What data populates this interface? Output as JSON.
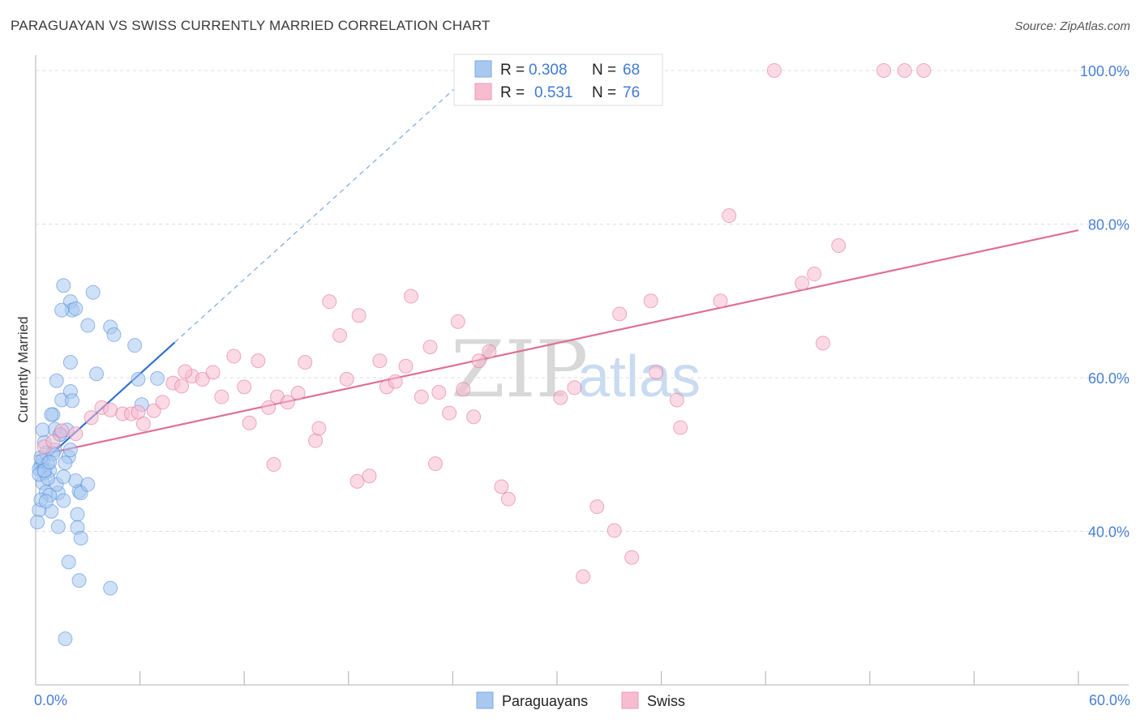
{
  "header": {
    "title": "PARAGUAYAN VS SWISS CURRENTLY MARRIED CORRELATION CHART",
    "source": "Source: ZipAtlas.com"
  },
  "watermark": {
    "zip": "ZIP",
    "atlas": "atlas"
  },
  "legend_top": {
    "rows": [
      {
        "r_label": "R =",
        "r_value": "0.308",
        "n_label": "N =",
        "n_value": "68",
        "color": "#a8c8f0"
      },
      {
        "r_label": "R =",
        "r_value": "0.531",
        "n_label": "N =",
        "n_value": "76",
        "color": "#f8bcd0"
      }
    ]
  },
  "legend_bottom": {
    "items": [
      {
        "label": "Paraguayans",
        "color": "#a8c8f0"
      },
      {
        "label": "Swiss",
        "color": "#f8bcd0"
      }
    ]
  },
  "chart_data": {
    "type": "scatter",
    "title": "PARAGUAYAN VS SWISS CURRENTLY MARRIED CORRELATION CHART",
    "xlabel": "",
    "ylabel": "Currently Married",
    "xlim": [
      0,
      60
    ],
    "ylim": [
      20,
      102
    ],
    "x_tick_labels": [
      {
        "value": 0,
        "label": "0.0%"
      },
      {
        "value": 60,
        "label": "60.0%"
      }
    ],
    "y_tick_labels": [
      {
        "value": 40,
        "label": "40.0%"
      },
      {
        "value": 60,
        "label": "60.0%"
      },
      {
        "value": 80,
        "label": "80.0%"
      },
      {
        "value": 100,
        "label": "100.0%"
      }
    ],
    "y_gridlines": [
      40,
      60,
      80,
      100
    ],
    "x_minor_ticks": [
      6,
      12,
      18,
      24,
      30,
      36,
      42,
      48,
      54
    ],
    "series": [
      {
        "name": "Paraguayans",
        "color": "#4f86d8",
        "fill": "#a8c8f0",
        "points": [
          [
            0.3,
            48.6
          ],
          [
            0.5,
            51.6
          ],
          [
            0.2,
            48.1
          ],
          [
            0.4,
            49.2
          ],
          [
            0.6,
            50.2
          ],
          [
            0.8,
            47.9
          ],
          [
            1.2,
            59.6
          ],
          [
            1.0,
            55.2
          ],
          [
            1.5,
            57.1
          ],
          [
            2.0,
            58.2
          ],
          [
            2.1,
            57.0
          ],
          [
            1.8,
            53.2
          ],
          [
            1.4,
            52.6
          ],
          [
            1.1,
            50.6
          ],
          [
            0.7,
            48.9
          ],
          [
            0.5,
            47.6
          ],
          [
            0.4,
            46.3
          ],
          [
            0.6,
            45.1
          ],
          [
            1.3,
            45.0
          ],
          [
            1.6,
            44.0
          ],
          [
            1.9,
            49.7
          ],
          [
            1.7,
            48.9
          ],
          [
            2.3,
            46.6
          ],
          [
            2.5,
            45.2
          ],
          [
            2.6,
            45.0
          ],
          [
            2.4,
            42.2
          ],
          [
            0.9,
            42.6
          ],
          [
            0.2,
            42.8
          ],
          [
            0.1,
            41.2
          ],
          [
            1.2,
            46.1
          ],
          [
            0.8,
            44.7
          ],
          [
            0.3,
            44.1
          ],
          [
            0.6,
            43.9
          ],
          [
            1.1,
            53.3
          ],
          [
            1.6,
            47.1
          ],
          [
            2.0,
            50.6
          ],
          [
            3.0,
            46.1
          ],
          [
            2.4,
            40.5
          ],
          [
            1.9,
            36.0
          ],
          [
            2.6,
            39.1
          ],
          [
            2.5,
            33.6
          ],
          [
            4.3,
            32.6
          ],
          [
            1.7,
            26.0
          ],
          [
            1.3,
            40.6
          ],
          [
            1.4,
            52.6
          ],
          [
            2.0,
            62.0
          ],
          [
            2.0,
            69.9
          ],
          [
            2.1,
            68.8
          ],
          [
            2.3,
            69.0
          ],
          [
            1.5,
            68.8
          ],
          [
            1.6,
            72.0
          ],
          [
            3.3,
            71.1
          ],
          [
            3.0,
            66.8
          ],
          [
            4.3,
            66.6
          ],
          [
            4.5,
            65.6
          ],
          [
            5.7,
            64.2
          ],
          [
            3.5,
            60.5
          ],
          [
            5.9,
            59.8
          ],
          [
            7.0,
            59.9
          ],
          [
            6.1,
            56.5
          ],
          [
            0.9,
            55.2
          ],
          [
            0.4,
            53.2
          ],
          [
            0.2,
            47.4
          ],
          [
            0.7,
            46.9
          ],
          [
            0.3,
            49.6
          ],
          [
            1.0,
            50.1
          ],
          [
            0.5,
            47.9
          ],
          [
            0.8,
            49.0
          ]
        ],
        "trendline": {
          "x": [
            0,
            8
          ],
          "y": [
            48.2,
            64.6
          ]
        },
        "trendline_extension": {
          "x": [
            8,
            25.5
          ],
          "y": [
            64.6,
            100.5
          ]
        }
      },
      {
        "name": "Swiss",
        "color": "#e06e98",
        "fill": "#f8bcd0",
        "points": [
          [
            0.5,
            51.0
          ],
          [
            1.0,
            51.7
          ],
          [
            1.5,
            53.1
          ],
          [
            2.3,
            52.7
          ],
          [
            3.2,
            54.8
          ],
          [
            3.8,
            56.1
          ],
          [
            4.3,
            55.8
          ],
          [
            5.0,
            55.3
          ],
          [
            5.5,
            55.3
          ],
          [
            5.9,
            55.5
          ],
          [
            6.2,
            54.0
          ],
          [
            6.8,
            55.7
          ],
          [
            7.3,
            56.8
          ],
          [
            7.9,
            59.3
          ],
          [
            8.4,
            58.9
          ],
          [
            9.0,
            60.2
          ],
          [
            9.6,
            59.8
          ],
          [
            10.2,
            60.7
          ],
          [
            10.7,
            57.5
          ],
          [
            11.4,
            62.8
          ],
          [
            12.0,
            58.8
          ],
          [
            12.3,
            54.1
          ],
          [
            12.8,
            62.2
          ],
          [
            13.4,
            56.1
          ],
          [
            13.7,
            48.7
          ],
          [
            13.9,
            57.5
          ],
          [
            14.5,
            56.8
          ],
          [
            15.1,
            58.0
          ],
          [
            15.5,
            62.0
          ],
          [
            16.1,
            51.8
          ],
          [
            16.3,
            53.4
          ],
          [
            16.9,
            69.9
          ],
          [
            17.5,
            65.5
          ],
          [
            17.9,
            59.8
          ],
          [
            18.6,
            68.1
          ],
          [
            18.5,
            46.5
          ],
          [
            19.2,
            47.2
          ],
          [
            19.8,
            62.2
          ],
          [
            20.2,
            58.8
          ],
          [
            20.7,
            59.5
          ],
          [
            21.3,
            61.5
          ],
          [
            21.6,
            70.6
          ],
          [
            22.2,
            57.5
          ],
          [
            22.7,
            64.0
          ],
          [
            23.0,
            48.8
          ],
          [
            23.2,
            58.1
          ],
          [
            23.8,
            55.4
          ],
          [
            24.3,
            67.3
          ],
          [
            24.6,
            58.5
          ],
          [
            25.2,
            54.9
          ],
          [
            25.5,
            62.2
          ],
          [
            26.1,
            63.4
          ],
          [
            26.8,
            45.8
          ],
          [
            27.2,
            44.2
          ],
          [
            30.2,
            57.4
          ],
          [
            31.0,
            58.7
          ],
          [
            31.5,
            34.1
          ],
          [
            32.3,
            43.2
          ],
          [
            33.3,
            40.1
          ],
          [
            33.6,
            68.3
          ],
          [
            34.3,
            36.6
          ],
          [
            35.4,
            70.0
          ],
          [
            35.7,
            60.7
          ],
          [
            36.9,
            57.1
          ],
          [
            37.1,
            53.5
          ],
          [
            39.4,
            70.0
          ],
          [
            39.9,
            81.1
          ],
          [
            44.1,
            72.3
          ],
          [
            44.8,
            73.5
          ],
          [
            46.2,
            77.2
          ],
          [
            45.3,
            64.5
          ],
          [
            42.5,
            100.0
          ],
          [
            48.8,
            100.0
          ],
          [
            50.0,
            100.0
          ],
          [
            51.1,
            100.0
          ],
          [
            8.6,
            60.8
          ]
        ],
        "trendline": {
          "x": [
            0,
            60
          ],
          "y": [
            49.8,
            79.2
          ]
        }
      }
    ]
  }
}
